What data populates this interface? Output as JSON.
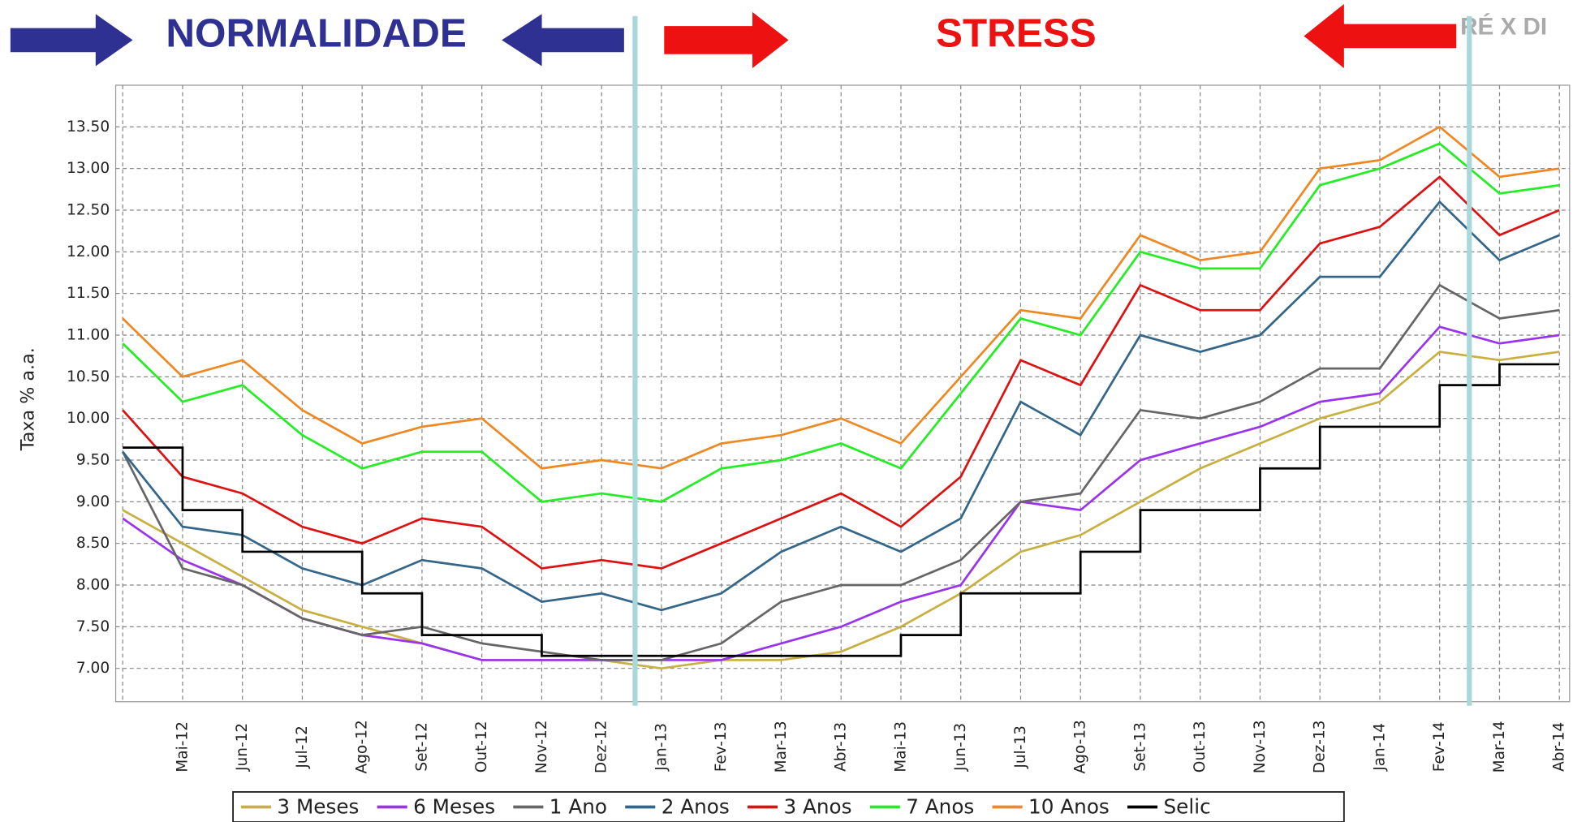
{
  "chart_data": {
    "type": "line",
    "banner": {
      "left": "NORMALIDADE",
      "right": "STRESS",
      "corner": "RÉ X DI"
    },
    "ylabel": "Taxa % a.a.",
    "categories": [
      null,
      "Mai-12",
      "Jun-12",
      "Jul-12",
      "Ago-12",
      "Set-12",
      "Out-12",
      "Nov-12",
      "Dez-12",
      "Jan-13",
      "Fev-13",
      "Mar-13",
      "Abr-13",
      "Mai-13",
      "Jun-13",
      "Jul-13",
      "Ago-13",
      "Set-13",
      "Out-13",
      "Nov-13",
      "Dez-13",
      "Jan-14",
      "Fev-14",
      "Mar-14",
      "Abr-14"
    ],
    "ylim": [
      6.6,
      14.0
    ],
    "yticks": [
      {
        "value": 7,
        "label": "7.00"
      },
      {
        "value": 7.5,
        "label": "7.50"
      },
      {
        "value": 8,
        "label": "8.00"
      },
      {
        "value": 8.5,
        "label": "8.50"
      },
      {
        "value": 9,
        "label": "9.00"
      },
      {
        "value": 9.5,
        "label": "9.50"
      },
      {
        "value": 10,
        "label": "10.00"
      },
      {
        "value": 10.5,
        "label": "10.50"
      },
      {
        "value": 11,
        "label": "11.00"
      },
      {
        "value": 11.5,
        "label": "11.50"
      },
      {
        "value": 12,
        "label": "12.00"
      },
      {
        "value": 12.5,
        "label": "12.50"
      },
      {
        "value": 13,
        "label": "13.00"
      },
      {
        "value": 13.5,
        "label": "13.50"
      }
    ],
    "grid": true,
    "series": [
      {
        "name": "3 Meses",
        "color": "#c8b040",
        "values": [
          8.9,
          8.5,
          8.1,
          7.7,
          7.5,
          7.3,
          7.1,
          7.1,
          7.1,
          7.0,
          7.1,
          7.1,
          7.2,
          7.5,
          7.9,
          8.4,
          8.6,
          9.0,
          9.4,
          9.7,
          10.0,
          10.2,
          10.8,
          10.7,
          10.8
        ]
      },
      {
        "name": "6 Meses",
        "color": "#9933ee",
        "values": [
          8.8,
          8.3,
          8.0,
          7.6,
          7.4,
          7.3,
          7.1,
          7.1,
          7.1,
          7.1,
          7.1,
          7.3,
          7.5,
          7.8,
          8.0,
          9.0,
          8.9,
          9.5,
          9.7,
          9.9,
          10.2,
          10.3,
          11.1,
          10.9,
          11.0
        ]
      },
      {
        "name": "1 Ano",
        "color": "#666666",
        "values": [
          9.6,
          8.2,
          8.0,
          7.6,
          7.4,
          7.5,
          7.3,
          7.2,
          7.1,
          7.1,
          7.3,
          7.8,
          8.0,
          8.0,
          8.3,
          9.0,
          9.1,
          10.1,
          10.0,
          10.2,
          10.6,
          10.6,
          11.6,
          11.2,
          11.3
        ]
      },
      {
        "name": "2 Anos",
        "color": "#336688",
        "values": [
          9.6,
          8.7,
          8.6,
          8.2,
          8.0,
          8.3,
          8.2,
          7.8,
          7.9,
          7.7,
          7.9,
          8.4,
          8.7,
          8.4,
          8.8,
          10.2,
          9.8,
          11.0,
          10.8,
          11.0,
          11.7,
          11.7,
          12.6,
          11.9,
          12.2
        ]
      },
      {
        "name": "3 Anos",
        "color": "#dd1111",
        "values": [
          10.1,
          9.3,
          9.1,
          8.7,
          8.5,
          8.8,
          8.7,
          8.2,
          8.3,
          8.2,
          8.5,
          8.8,
          9.1,
          8.7,
          9.3,
          10.7,
          10.4,
          11.6,
          11.3,
          11.3,
          12.1,
          12.3,
          12.9,
          12.2,
          12.5
        ]
      },
      {
        "name": "7 Anos",
        "color": "#22ee22",
        "values": [
          10.9,
          10.2,
          10.4,
          9.8,
          9.4,
          9.6,
          9.6,
          9.0,
          9.1,
          9.0,
          9.4,
          9.5,
          9.7,
          9.4,
          10.3,
          11.2,
          11.0,
          12.0,
          11.8,
          11.8,
          12.8,
          13.0,
          13.3,
          12.7,
          12.8
        ]
      },
      {
        "name": "10 Anos",
        "color": "#ee8822",
        "values": [
          11.2,
          10.5,
          10.7,
          10.1,
          9.7,
          9.9,
          10.0,
          9.4,
          9.5,
          9.4,
          9.7,
          9.8,
          10.0,
          9.7,
          10.5,
          11.3,
          11.2,
          12.2,
          11.9,
          12.0,
          13.0,
          13.1,
          13.5,
          12.9,
          13.0
        ]
      },
      {
        "name": "Selic",
        "color": "#000000",
        "step": true,
        "values": [
          9.65,
          8.9,
          8.4,
          8.4,
          7.9,
          7.4,
          7.4,
          7.15,
          7.15,
          7.15,
          7.15,
          7.15,
          7.15,
          7.4,
          7.9,
          7.9,
          8.4,
          8.9,
          8.9,
          9.4,
          9.9,
          9.9,
          10.4,
          10.65,
          10.65
        ]
      }
    ]
  }
}
